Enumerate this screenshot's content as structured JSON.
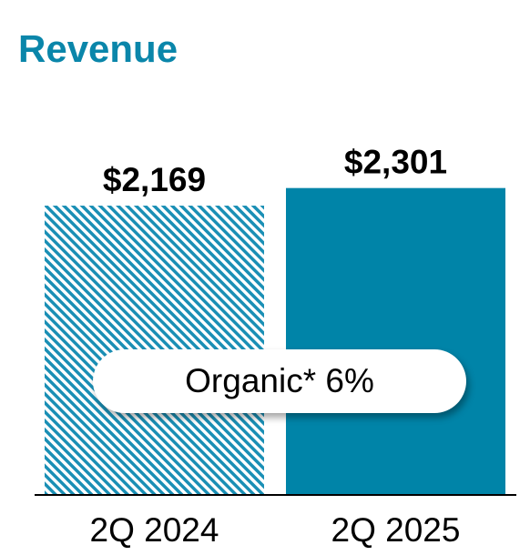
{
  "title": "Revenue",
  "annotation": "Organic* 6%",
  "colors": {
    "accent": "#0a86aa",
    "bar_current": "#0084a8",
    "hatch": "#1a8fb5"
  },
  "chart_data": {
    "type": "bar",
    "title": "Revenue",
    "categories": [
      "2Q 2024",
      "2Q 2025"
    ],
    "values": [
      2169,
      2301
    ],
    "value_labels": [
      "$2,169",
      "$2,301"
    ],
    "bar_styles": [
      "hatched",
      "solid"
    ],
    "xlabel": "",
    "ylabel": "",
    "ylim": [
      0,
      2500
    ],
    "grid": false,
    "legend": "none"
  }
}
